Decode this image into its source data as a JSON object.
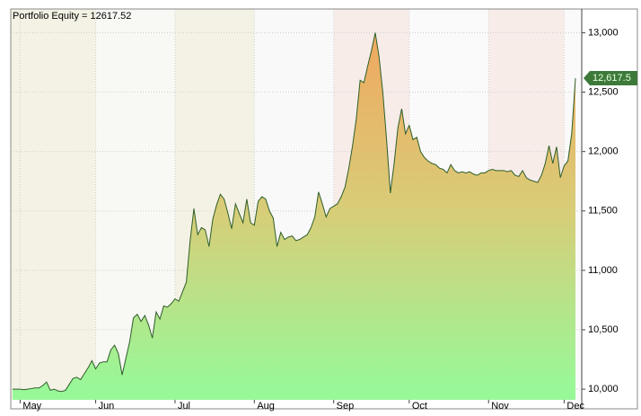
{
  "chart_data": {
    "type": "area",
    "title": "Portfolio Equity = 12617.52",
    "values": [
      10000,
      10000,
      10000,
      9995,
      10000,
      10005,
      10010,
      10010,
      10030,
      10060,
      9990,
      10000,
      9985,
      9980,
      9990,
      10040,
      10090,
      10100,
      10080,
      10130,
      10180,
      10240,
      10170,
      10220,
      10230,
      10230,
      10330,
      10370,
      10300,
      10120,
      10260,
      10400,
      10600,
      10630,
      10570,
      10620,
      10540,
      10430,
      10650,
      10590,
      10700,
      10690,
      10720,
      10760,
      10740,
      10820,
      10900,
      11250,
      11520,
      11300,
      11360,
      11340,
      11200,
      11430,
      11550,
      11640,
      11600,
      11480,
      11350,
      11560,
      11480,
      11400,
      11600,
      11400,
      11380,
      11580,
      11620,
      11600,
      11500,
      11440,
      11200,
      11320,
      11260,
      11280,
      11290,
      11250,
      11260,
      11280,
      11300,
      11360,
      11450,
      11660,
      11560,
      11450,
      11520,
      11540,
      11560,
      11620,
      11700,
      11860,
      12050,
      12280,
      12600,
      12580,
      12720,
      12850,
      13000,
      12800,
      12500,
      12100,
      11650,
      11900,
      12200,
      12360,
      12150,
      12220,
      12100,
      12120,
      12000,
      11950,
      11920,
      11900,
      11890,
      11860,
      11850,
      11820,
      11890,
      11840,
      11820,
      11830,
      11820,
      11830,
      11810,
      11800,
      11820,
      11820,
      11840,
      11850,
      11840,
      11840,
      11840,
      11830,
      11840,
      11800,
      11790,
      11840,
      11780,
      11760,
      11750,
      11740,
      11800,
      11900,
      12050,
      11900,
      12040,
      11780,
      11880,
      11920,
      12150,
      12617.52
    ],
    "line_color": "#2e5e2a",
    "fill_colors": [
      "#f0a860",
      "#d8cd78",
      "#98f898"
    ],
    "xlim": [
      0,
      149
    ],
    "xticks": [
      {
        "value": 2,
        "label": "May"
      },
      {
        "value": 22,
        "label": "Jun"
      },
      {
        "value": 43,
        "label": "Jul"
      },
      {
        "value": 64,
        "label": "Aug"
      },
      {
        "value": 85,
        "label": "Sep"
      },
      {
        "value": 105,
        "label": "Oct"
      },
      {
        "value": 126,
        "label": "Nov"
      },
      {
        "value": 146,
        "label": "Dec"
      }
    ],
    "ylim": [
      9910,
      13200
    ],
    "yticks": [
      {
        "value": 10000,
        "label": "10,000"
      },
      {
        "value": 10500,
        "label": "10,500"
      },
      {
        "value": 11000,
        "label": "11,000"
      },
      {
        "value": 11500,
        "label": "11,500"
      },
      {
        "value": 12000,
        "label": "12,000"
      },
      {
        "value": 12500,
        "label": "12,500"
      },
      {
        "value": 13000,
        "label": "13,000"
      }
    ],
    "grid": true,
    "last_value": {
      "value": 12617.52,
      "label": "12,617.5"
    }
  }
}
